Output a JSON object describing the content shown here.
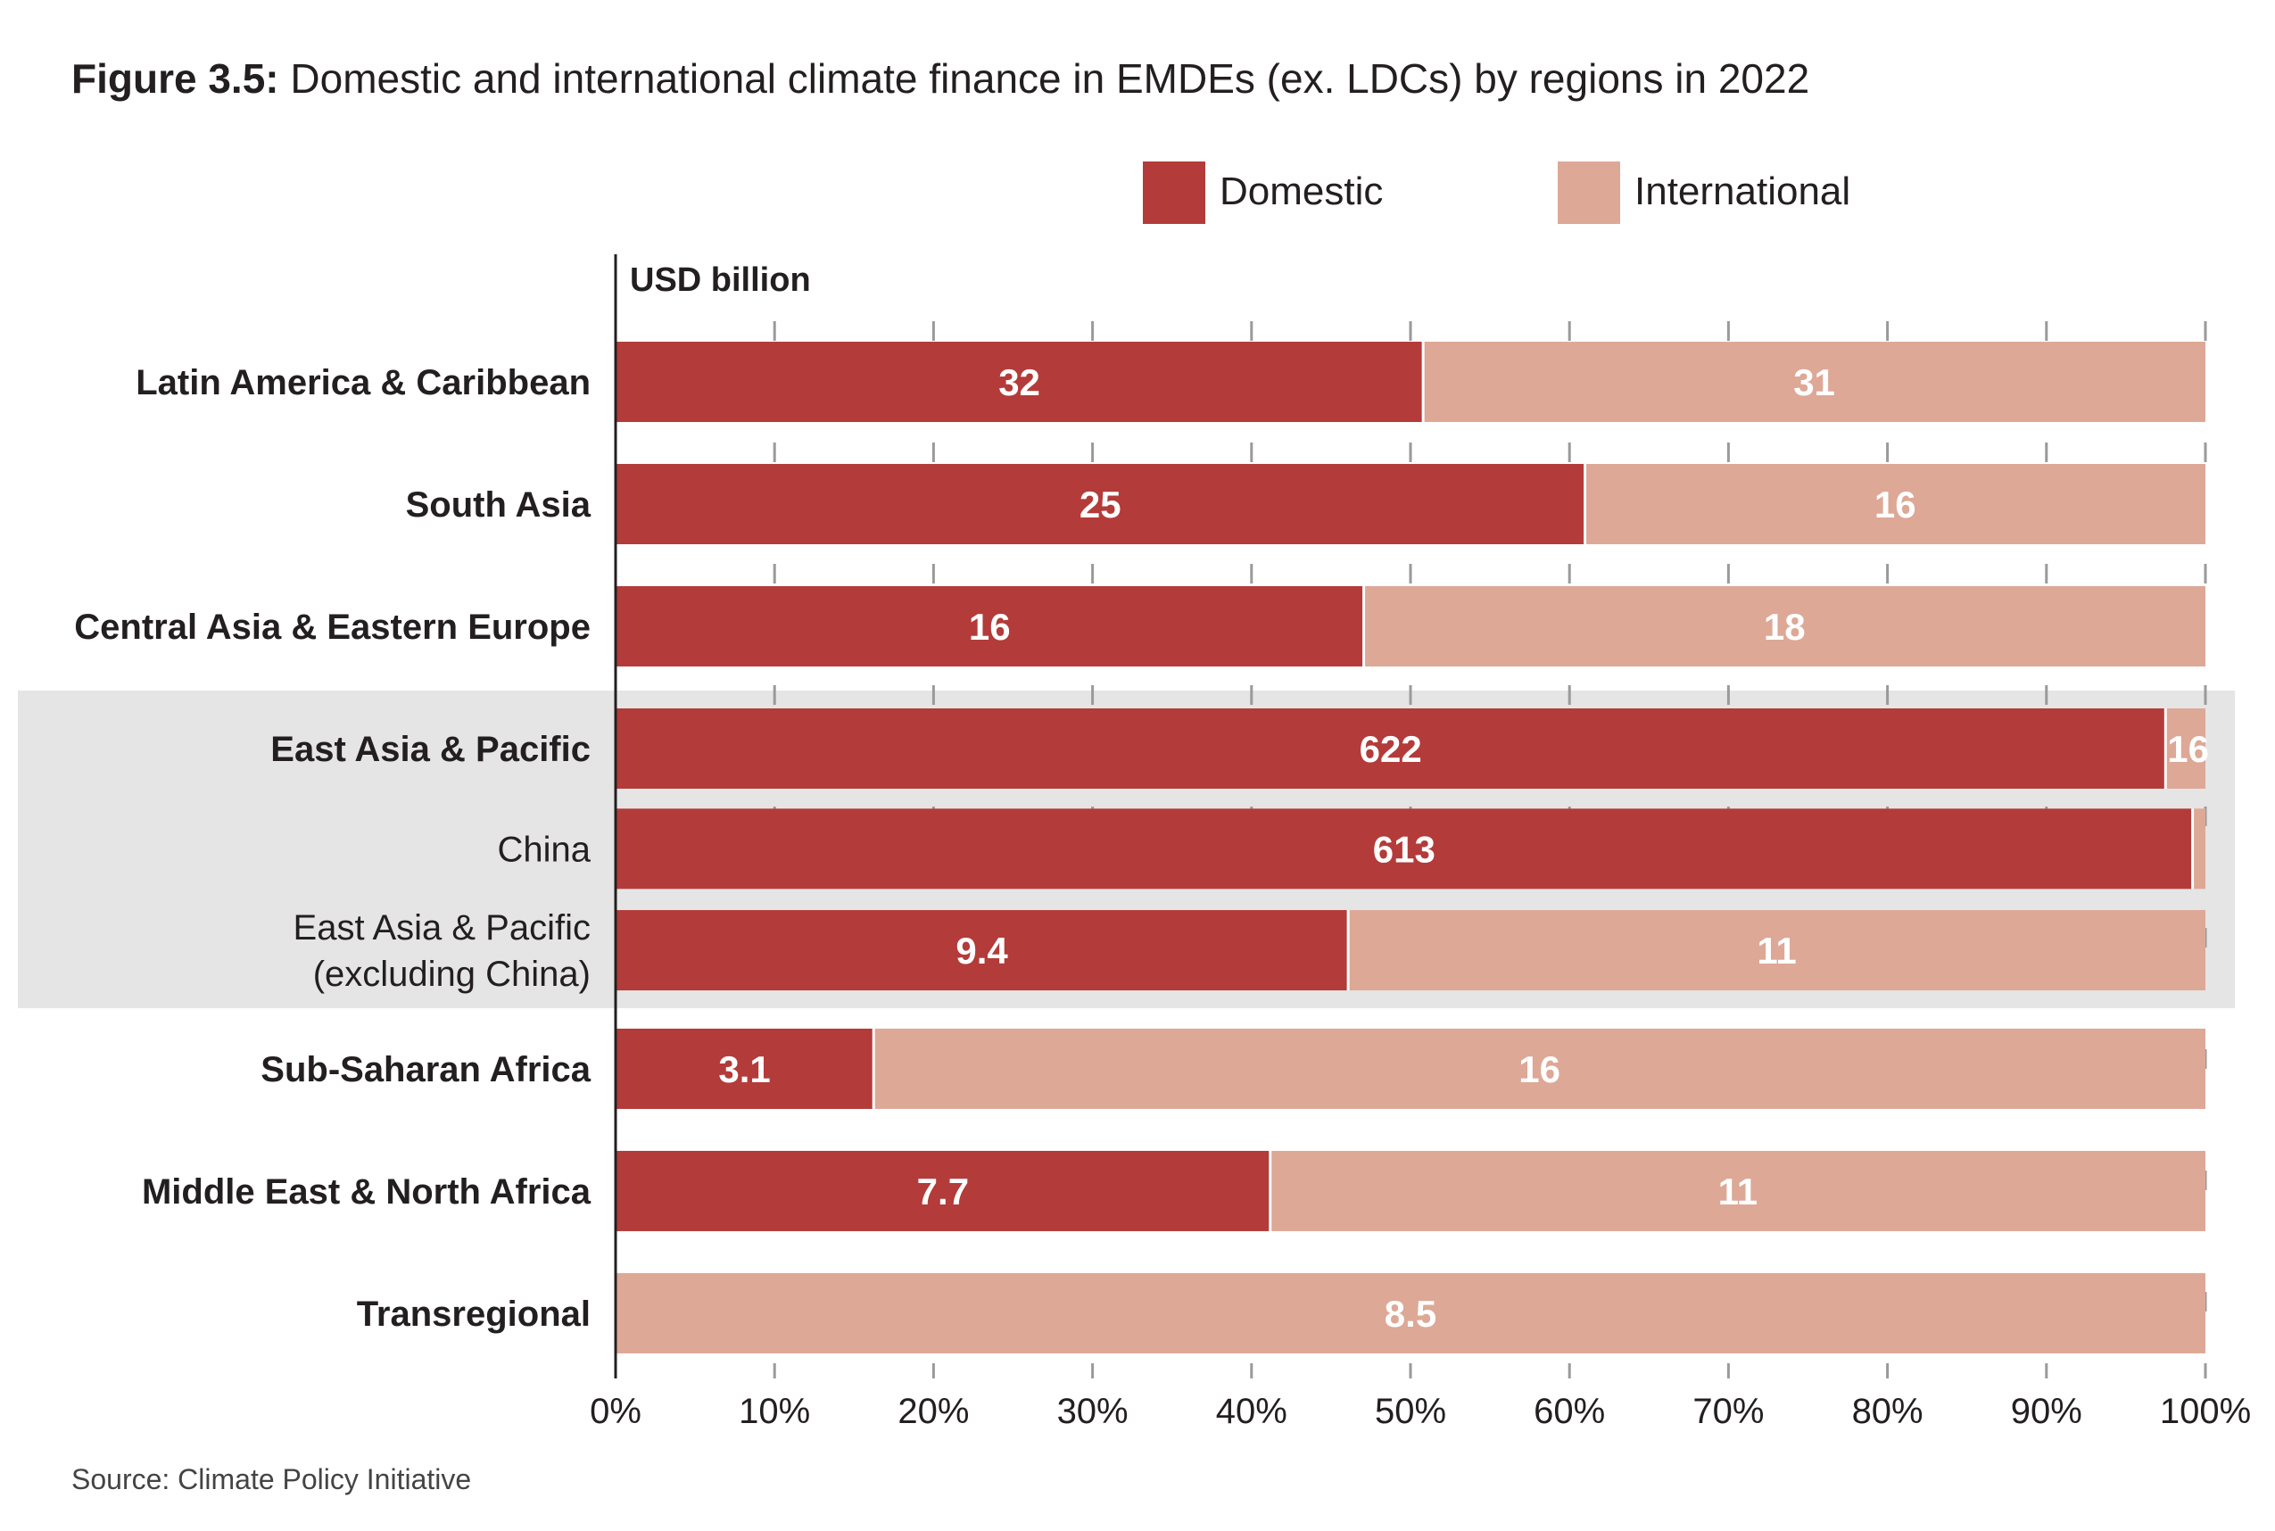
{
  "figure": {
    "title_prefix": "Figure 3.5:",
    "title_text": " Domestic and international climate finance in EMDEs (ex. LDCs) by regions in 2022",
    "source": "Source: Climate Policy Initiative"
  },
  "colors": {
    "domestic": "#b33b39",
    "international": "#dda896",
    "highlight_band": "#e5e5e5",
    "axis": "#231f20",
    "grid": "#9a9a9a"
  },
  "chart_data": {
    "type": "bar",
    "orientation": "horizontal",
    "stacked": "percent",
    "unit_label": "USD billion",
    "legend": [
      "Domestic",
      "International"
    ],
    "legend_position": "top-right",
    "xlim": [
      0,
      100
    ],
    "x_ticks": [
      "0%",
      "10%",
      "20%",
      "30%",
      "40%",
      "50%",
      "60%",
      "70%",
      "80%",
      "90%",
      "100%"
    ],
    "highlighted_group": [
      "East Asia & Pacific",
      "China",
      "East Asia & Pacific (excluding China)"
    ],
    "rows": [
      {
        "category": [
          "Latin America & Caribbean"
        ],
        "bold": true,
        "domestic": 32,
        "international": 31,
        "domestic_label": "32",
        "international_label": "31"
      },
      {
        "category": [
          "South Asia"
        ],
        "bold": true,
        "domestic": 25,
        "international": 16,
        "domestic_label": "25",
        "international_label": "16"
      },
      {
        "category": [
          "Central Asia & Eastern Europe"
        ],
        "bold": true,
        "domestic": 16,
        "international": 18,
        "domestic_label": "16",
        "international_label": "18"
      },
      {
        "category": [
          "East Asia & Pacific"
        ],
        "bold": true,
        "domestic": 622,
        "international": 16,
        "domestic_label": "622",
        "international_label": "16"
      },
      {
        "category": [
          "China"
        ],
        "bold": false,
        "domestic": 613,
        "international": 5,
        "domestic_label": "613",
        "international_label": ""
      },
      {
        "category": [
          "East Asia & Pacific",
          "(excluding China)"
        ],
        "bold": false,
        "domestic": 9.4,
        "international": 11,
        "domestic_label": "9.4",
        "international_label": "11"
      },
      {
        "category": [
          "Sub-Saharan Africa"
        ],
        "bold": true,
        "domestic": 3.1,
        "international": 16,
        "domestic_label": "3.1",
        "international_label": "16"
      },
      {
        "category": [
          "Middle East & North Africa"
        ],
        "bold": true,
        "domestic": 7.7,
        "international": 11,
        "domestic_label": "7.7",
        "international_label": "11"
      },
      {
        "category": [
          "Transregional"
        ],
        "bold": true,
        "domestic": 0,
        "international": 8.5,
        "domestic_label": "",
        "international_label": "8.5"
      }
    ]
  }
}
